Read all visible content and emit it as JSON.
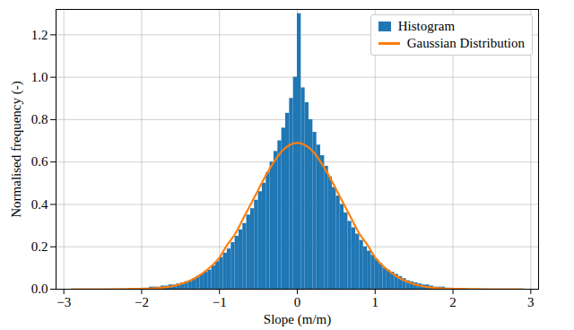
{
  "chart_data": {
    "type": "histogram",
    "x_label": "Slope (m/m)",
    "y_label": "Normalised frequency (-)",
    "xlim": [
      -3.1,
      3.1
    ],
    "ylim": [
      0,
      1.32
    ],
    "xticks": [
      {
        "value": -3,
        "label": "−3"
      },
      {
        "value": -2,
        "label": "−2"
      },
      {
        "value": -1,
        "label": "−1"
      },
      0,
      1,
      2,
      3
    ],
    "yticks": [
      {
        "value": 0,
        "label": "0.0"
      },
      {
        "value": 0.2,
        "label": "0.2"
      },
      {
        "value": 0.4,
        "label": "0.4"
      },
      {
        "value": 0.6,
        "label": "0.6"
      },
      {
        "value": 0.8,
        "label": "0.8"
      },
      {
        "value": 1.0,
        "label": "1.0"
      },
      {
        "value": 1.2,
        "label": "1.2"
      }
    ],
    "grid": true,
    "legend": "upper right",
    "series": [
      {
        "name": "Histogram",
        "type": "bar",
        "color": "#1f77b4",
        "bins": [
          -2.0,
          -1.95,
          -1.9,
          -1.85,
          -1.8,
          -1.75,
          -1.7,
          -1.65,
          -1.6,
          -1.55,
          -1.5,
          -1.45,
          -1.4,
          -1.35,
          -1.3,
          -1.25,
          -1.2,
          -1.15,
          -1.1,
          -1.05,
          -1.0,
          -0.95,
          -0.9,
          -0.85,
          -0.8,
          -0.75,
          -0.7,
          -0.65,
          -0.6,
          -0.55,
          -0.5,
          -0.45,
          -0.4,
          -0.35,
          -0.3,
          -0.25,
          -0.2,
          -0.15,
          -0.1,
          -0.05,
          0,
          0.05,
          0.1,
          0.15,
          0.2,
          0.25,
          0.3,
          0.35,
          0.4,
          0.45,
          0.5,
          0.55,
          0.6,
          0.65,
          0.7,
          0.75,
          0.8,
          0.85,
          0.9,
          0.95,
          1.0,
          1.05,
          1.1,
          1.15,
          1.2,
          1.25,
          1.3,
          1.35,
          1.4,
          1.45,
          1.5,
          1.55,
          1.6,
          1.65,
          1.7,
          1.75,
          1.8,
          1.85,
          1.9,
          1.95,
          2.0
        ],
        "values": [
          0.005,
          0.005,
          0.01,
          0.01,
          0.01,
          0.015,
          0.015,
          0.02,
          0.02,
          0.025,
          0.03,
          0.035,
          0.04,
          0.05,
          0.06,
          0.07,
          0.08,
          0.09,
          0.11,
          0.13,
          0.15,
          0.17,
          0.19,
          0.22,
          0.25,
          0.28,
          0.31,
          0.35,
          0.38,
          0.42,
          0.46,
          0.5,
          0.55,
          0.6,
          0.65,
          0.7,
          0.76,
          0.83,
          0.9,
          1.0,
          1.3,
          0.95,
          0.88,
          0.8,
          0.74,
          0.68,
          0.63,
          0.58,
          0.53,
          0.48,
          0.44,
          0.4,
          0.36,
          0.32,
          0.29,
          0.26,
          0.23,
          0.2,
          0.18,
          0.16,
          0.14,
          0.12,
          0.1,
          0.09,
          0.08,
          0.07,
          0.06,
          0.05,
          0.04,
          0.035,
          0.03,
          0.025,
          0.02,
          0.02,
          0.015,
          0.01,
          0.01,
          0.01,
          0.005,
          0.005
        ]
      },
      {
        "name": "Gaussian Distribution",
        "type": "line",
        "color": "#ff7f0e",
        "x": [
          -2.9,
          -2.5,
          -2.2,
          -2.0,
          -1.9,
          -1.8,
          -1.7,
          -1.6,
          -1.5,
          -1.4,
          -1.3,
          -1.2,
          -1.1,
          -1.0,
          -0.9,
          -0.8,
          -0.7,
          -0.6,
          -0.5,
          -0.4,
          -0.3,
          -0.2,
          -0.1,
          0,
          0.1,
          0.2,
          0.3,
          0.4,
          0.5,
          0.6,
          0.7,
          0.8,
          0.9,
          1.0,
          1.1,
          1.2,
          1.3,
          1.4,
          1.5,
          1.6,
          1.7,
          1.8,
          1.9,
          2.0,
          2.2,
          2.5,
          2.9
        ],
        "values": [
          0,
          0,
          0.001,
          0.002,
          0.003,
          0.005,
          0.009,
          0.015,
          0.024,
          0.037,
          0.055,
          0.08,
          0.11,
          0.15,
          0.21,
          0.26,
          0.33,
          0.4,
          0.47,
          0.54,
          0.6,
          0.65,
          0.68,
          0.69,
          0.68,
          0.65,
          0.6,
          0.54,
          0.47,
          0.4,
          0.33,
          0.26,
          0.21,
          0.15,
          0.11,
          0.08,
          0.055,
          0.037,
          0.024,
          0.015,
          0.009,
          0.005,
          0.003,
          0.002,
          0.001,
          0,
          0
        ]
      }
    ]
  }
}
